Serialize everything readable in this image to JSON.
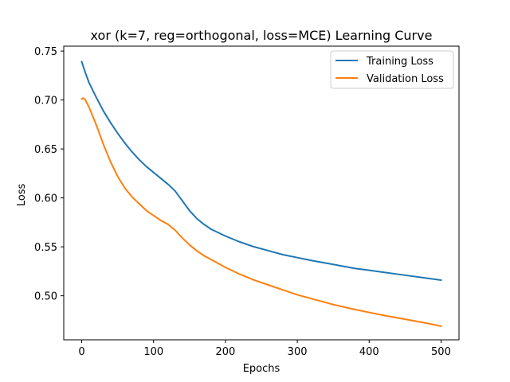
{
  "chart_data": {
    "type": "line",
    "title": "xor (k=7, reg=orthogonal, loss=MCE) Learning Curve",
    "xlabel": "Epochs",
    "ylabel": "Loss",
    "xlim": [
      -25,
      525
    ],
    "ylim": [
      0.455,
      0.755
    ],
    "xticks": [
      0,
      100,
      200,
      300,
      400,
      500
    ],
    "yticks": [
      0.5,
      0.55,
      0.6,
      0.65,
      0.7,
      0.75
    ],
    "ytick_labels": [
      "0.50",
      "0.55",
      "0.60",
      "0.65",
      "0.70",
      "0.75"
    ],
    "grid": false,
    "legend_position": "top-right",
    "series": [
      {
        "name": "Training Loss",
        "color": "#1f77b4",
        "x": [
          0,
          5,
          10,
          20,
          30,
          40,
          50,
          60,
          70,
          80,
          90,
          100,
          110,
          120,
          130,
          140,
          150,
          160,
          170,
          180,
          200,
          220,
          240,
          260,
          280,
          300,
          320,
          350,
          380,
          400,
          420,
          450,
          480,
          500
        ],
        "y": [
          0.739,
          0.728,
          0.718,
          0.703,
          0.689,
          0.677,
          0.666,
          0.656,
          0.647,
          0.639,
          0.632,
          0.626,
          0.62,
          0.614,
          0.607,
          0.597,
          0.587,
          0.579,
          0.573,
          0.568,
          0.561,
          0.555,
          0.55,
          0.546,
          0.542,
          0.539,
          0.536,
          0.532,
          0.528,
          0.526,
          0.524,
          0.521,
          0.518,
          0.516
        ]
      },
      {
        "name": "Validation Loss",
        "color": "#ff7f0e",
        "x": [
          0,
          2,
          5,
          10,
          20,
          30,
          40,
          50,
          60,
          70,
          80,
          90,
          100,
          110,
          120,
          130,
          140,
          150,
          160,
          170,
          180,
          200,
          220,
          240,
          260,
          280,
          300,
          320,
          350,
          380,
          400,
          420,
          450,
          480,
          500
        ],
        "y": [
          0.701,
          0.702,
          0.7,
          0.693,
          0.675,
          0.655,
          0.637,
          0.622,
          0.61,
          0.601,
          0.594,
          0.587,
          0.582,
          0.577,
          0.573,
          0.567,
          0.559,
          0.552,
          0.546,
          0.541,
          0.537,
          0.529,
          0.522,
          0.516,
          0.511,
          0.506,
          0.501,
          0.497,
          0.491,
          0.486,
          0.483,
          0.48,
          0.476,
          0.472,
          0.469
        ]
      }
    ]
  }
}
